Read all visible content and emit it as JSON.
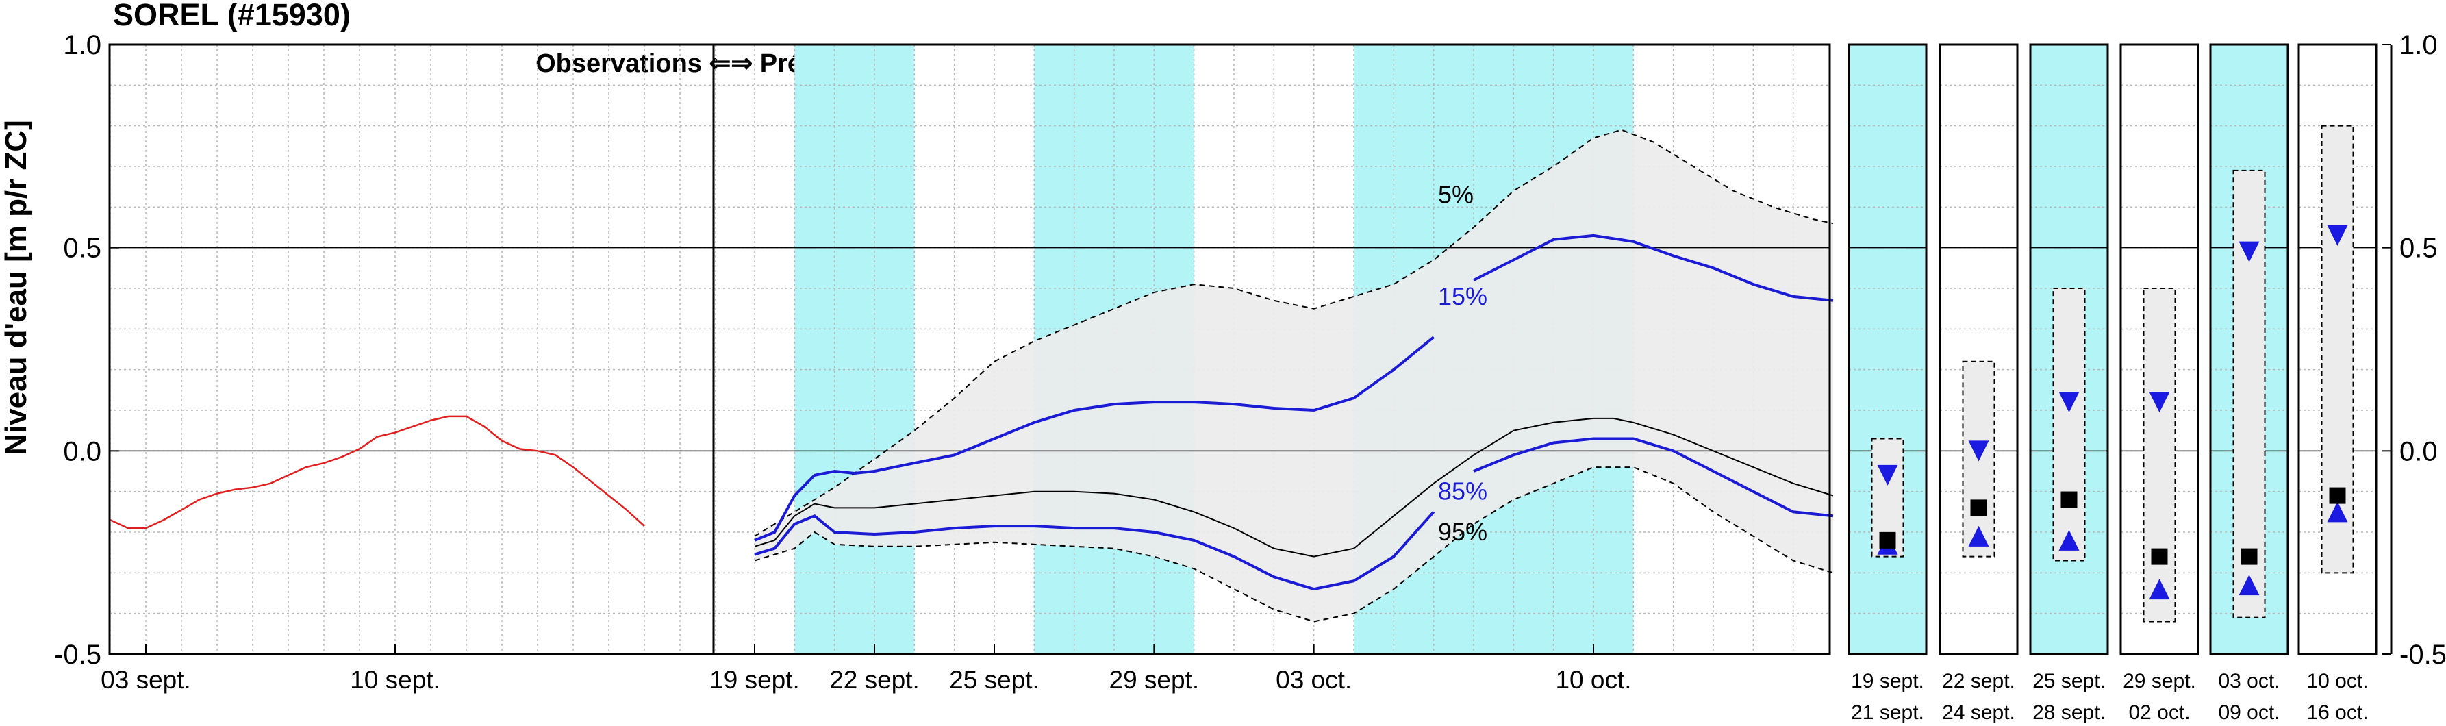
{
  "chart_data": {
    "type": "line",
    "title": "SOREL (#15930)",
    "ylabel": "Niveau d'eau [m p/r ZC]",
    "ylim": [
      -0.5,
      1.0
    ],
    "yticks": [
      "1.0",
      "0.5",
      "0.0",
      "-0.5"
    ],
    "grid": true,
    "divider_label": "Observations ⇐⇒ Prévisions",
    "colors": {
      "observed": "#e02020",
      "band": "#ececec",
      "shade": "#b3f4f6",
      "quantile_15_85": "#1b1bd6",
      "median": "#000000",
      "marker_blue": "#1a1ae0"
    },
    "x_domain": [
      0,
      44
    ],
    "forecast_start": 17,
    "observation_ticks": [
      {
        "x": 0,
        "label": "03 sept."
      },
      {
        "x": 7,
        "label": "10 sept."
      }
    ],
    "forecast_ticks": [
      {
        "x": 17,
        "label": "19 sept."
      },
      {
        "x": 20,
        "label": "22 sept."
      },
      {
        "x": 23,
        "label": "25 sept."
      },
      {
        "x": 27,
        "label": "29 sept."
      },
      {
        "x": 31,
        "label": "03 oct."
      },
      {
        "x": 38,
        "label": "10 oct."
      }
    ],
    "shaded_periods": [
      [
        18,
        21
      ],
      [
        24,
        28
      ],
      [
        32,
        39
      ]
    ],
    "series": [
      {
        "key": "observed",
        "points": [
          [
            -1,
            -0.17
          ],
          [
            -0.5,
            -0.19
          ],
          [
            0,
            -0.19
          ],
          [
            0.5,
            -0.17
          ],
          [
            1,
            -0.145
          ],
          [
            1.5,
            -0.12
          ],
          [
            2,
            -0.105
          ],
          [
            2.5,
            -0.095
          ],
          [
            3,
            -0.09
          ],
          [
            3.5,
            -0.08
          ],
          [
            4,
            -0.06
          ],
          [
            4.5,
            -0.04
          ],
          [
            5,
            -0.03
          ],
          [
            5.5,
            -0.015
          ],
          [
            6,
            0.005
          ],
          [
            6.5,
            0.035
          ],
          [
            7,
            0.045
          ],
          [
            7.5,
            0.06
          ],
          [
            8,
            0.075
          ],
          [
            8.5,
            0.085
          ],
          [
            9,
            0.085
          ],
          [
            9.5,
            0.06
          ],
          [
            10,
            0.025
          ],
          [
            10.5,
            0.005
          ],
          [
            11,
            0
          ],
          [
            11.5,
            -0.01
          ],
          [
            12,
            -0.04
          ],
          [
            12.5,
            -0.075
          ],
          [
            13,
            -0.11
          ],
          [
            13.5,
            -0.145
          ],
          [
            14,
            -0.185
          ]
        ]
      },
      {
        "key": "p05",
        "label": "5%",
        "points": [
          [
            17,
            -0.21
          ],
          [
            18,
            -0.15
          ],
          [
            19,
            -0.09
          ],
          [
            20,
            -0.02
          ],
          [
            21,
            0.05
          ],
          [
            22,
            0.13
          ],
          [
            23,
            0.22
          ],
          [
            24,
            0.27
          ],
          [
            25,
            0.31
          ],
          [
            26,
            0.35
          ],
          [
            27,
            0.39
          ],
          [
            28,
            0.41
          ],
          [
            29,
            0.4
          ],
          [
            30,
            0.37
          ],
          [
            31,
            0.35
          ],
          [
            32,
            0.38
          ],
          [
            33,
            0.41
          ],
          [
            34,
            0.47
          ],
          [
            35,
            0.55
          ],
          [
            36,
            0.64
          ],
          [
            37,
            0.7
          ],
          [
            38,
            0.77
          ],
          [
            38.7,
            0.79
          ],
          [
            39.5,
            0.76
          ],
          [
            40.5,
            0.7
          ],
          [
            41.5,
            0.64
          ],
          [
            42.5,
            0.6
          ],
          [
            43.5,
            0.57
          ],
          [
            44,
            0.56
          ]
        ]
      },
      {
        "key": "p15",
        "label": "15%",
        "points": [
          [
            17,
            -0.22
          ],
          [
            17.5,
            -0.2
          ],
          [
            18,
            -0.11
          ],
          [
            18.5,
            -0.06
          ],
          [
            19,
            -0.05
          ],
          [
            19.5,
            -0.055
          ],
          [
            20,
            -0.05
          ],
          [
            21,
            -0.03
          ],
          [
            22,
            -0.01
          ],
          [
            23,
            0.03
          ],
          [
            24,
            0.07
          ],
          [
            25,
            0.1
          ],
          [
            26,
            0.115
          ],
          [
            27,
            0.12
          ],
          [
            28,
            0.12
          ],
          [
            29,
            0.115
          ],
          [
            30,
            0.105
          ],
          [
            31,
            0.1
          ],
          [
            32,
            0.13
          ],
          [
            33,
            0.2
          ],
          [
            34,
            0.28
          ]
        ]
      },
      {
        "key": "p15b",
        "points": [
          [
            35,
            0.42
          ],
          [
            36,
            0.47
          ],
          [
            37,
            0.52
          ],
          [
            38,
            0.53
          ],
          [
            39,
            0.515
          ],
          [
            40,
            0.48
          ],
          [
            41,
            0.45
          ],
          [
            42,
            0.41
          ],
          [
            43,
            0.38
          ],
          [
            44,
            0.37
          ]
        ]
      },
      {
        "key": "p50",
        "points": [
          [
            17,
            -0.235
          ],
          [
            17.5,
            -0.22
          ],
          [
            18,
            -0.16
          ],
          [
            18.5,
            -0.13
          ],
          [
            19,
            -0.14
          ],
          [
            20,
            -0.14
          ],
          [
            21,
            -0.13
          ],
          [
            22,
            -0.12
          ],
          [
            23,
            -0.11
          ],
          [
            24,
            -0.1
          ],
          [
            25,
            -0.1
          ],
          [
            26,
            -0.105
          ],
          [
            27,
            -0.12
          ],
          [
            28,
            -0.15
          ],
          [
            29,
            -0.19
          ],
          [
            30,
            -0.24
          ],
          [
            31,
            -0.26
          ],
          [
            32,
            -0.24
          ],
          [
            33,
            -0.16
          ],
          [
            34,
            -0.08
          ],
          [
            35,
            -0.01
          ],
          [
            36,
            0.05
          ],
          [
            37,
            0.07
          ],
          [
            38,
            0.08
          ],
          [
            38.5,
            0.08
          ],
          [
            39,
            0.07
          ],
          [
            40,
            0.04
          ],
          [
            41,
            0.0
          ],
          [
            42,
            -0.04
          ],
          [
            43,
            -0.08
          ],
          [
            44,
            -0.11
          ]
        ]
      },
      {
        "key": "p85",
        "label": "85%",
        "points": [
          [
            17,
            -0.255
          ],
          [
            17.5,
            -0.24
          ],
          [
            18,
            -0.18
          ],
          [
            18.5,
            -0.16
          ],
          [
            19,
            -0.2
          ],
          [
            20,
            -0.205
          ],
          [
            21,
            -0.2
          ],
          [
            22,
            -0.19
          ],
          [
            23,
            -0.185
          ],
          [
            24,
            -0.185
          ],
          [
            25,
            -0.19
          ],
          [
            26,
            -0.19
          ],
          [
            27,
            -0.2
          ],
          [
            28,
            -0.22
          ],
          [
            29,
            -0.26
          ],
          [
            30,
            -0.31
          ],
          [
            31,
            -0.34
          ],
          [
            32,
            -0.32
          ],
          [
            33,
            -0.26
          ],
          [
            34,
            -0.15
          ]
        ]
      },
      {
        "key": "p85b",
        "points": [
          [
            35,
            -0.05
          ],
          [
            36,
            -0.01
          ],
          [
            37,
            0.02
          ],
          [
            38,
            0.03
          ],
          [
            39,
            0.03
          ],
          [
            40,
            0.0
          ],
          [
            41,
            -0.05
          ],
          [
            42,
            -0.1
          ],
          [
            43,
            -0.15
          ],
          [
            44,
            -0.16
          ]
        ]
      },
      {
        "key": "p95",
        "label": "95%",
        "points": [
          [
            17,
            -0.27
          ],
          [
            18,
            -0.24
          ],
          [
            18.5,
            -0.2
          ],
          [
            19,
            -0.23
          ],
          [
            20,
            -0.235
          ],
          [
            21,
            -0.235
          ],
          [
            22,
            -0.23
          ],
          [
            23,
            -0.225
          ],
          [
            24,
            -0.23
          ],
          [
            25,
            -0.235
          ],
          [
            26,
            -0.24
          ],
          [
            27,
            -0.26
          ],
          [
            28,
            -0.29
          ],
          [
            29,
            -0.34
          ],
          [
            30,
            -0.39
          ],
          [
            31,
            -0.42
          ],
          [
            32,
            -0.4
          ],
          [
            33,
            -0.34
          ],
          [
            34,
            -0.26
          ],
          [
            35,
            -0.18
          ],
          [
            36,
            -0.12
          ],
          [
            37,
            -0.08
          ],
          [
            38,
            -0.04
          ],
          [
            39,
            -0.04
          ],
          [
            40,
            -0.08
          ],
          [
            41,
            -0.15
          ],
          [
            42,
            -0.21
          ],
          [
            43,
            -0.27
          ],
          [
            44,
            -0.3
          ]
        ]
      }
    ],
    "right_axis": {
      "yticks": [
        "1.0",
        "0.5",
        "0.0",
        "-0.5"
      ],
      "panels": [
        {
          "period": [
            "19 sept.",
            "21 sept."
          ],
          "shaded": true,
          "box": [
            -0.26,
            0.03
          ],
          "p15": -0.06,
          "median": -0.22,
          "p85": -0.23
        },
        {
          "period": [
            "22 sept.",
            "24 sept."
          ],
          "shaded": false,
          "box": [
            -0.26,
            0.22
          ],
          "p15": 0.0,
          "median": -0.14,
          "p85": -0.21
        },
        {
          "period": [
            "25 sept.",
            "28 sept."
          ],
          "shaded": true,
          "box": [
            -0.27,
            0.4
          ],
          "p15": 0.12,
          "median": -0.12,
          "p85": -0.22
        },
        {
          "period": [
            "29 sept.",
            "02 oct."
          ],
          "shaded": false,
          "box": [
            -0.42,
            0.4
          ],
          "p15": 0.12,
          "median": -0.26,
          "p85": -0.34
        },
        {
          "period": [
            "03 oct.",
            "09 oct."
          ],
          "shaded": true,
          "box": [
            -0.41,
            0.69
          ],
          "p15": 0.49,
          "median": -0.26,
          "p85": -0.33
        },
        {
          "period": [
            "10 oct.",
            "16 oct."
          ],
          "shaded": false,
          "box": [
            -0.3,
            0.8
          ],
          "p15": 0.53,
          "median": -0.11,
          "p85": -0.15
        }
      ]
    }
  }
}
